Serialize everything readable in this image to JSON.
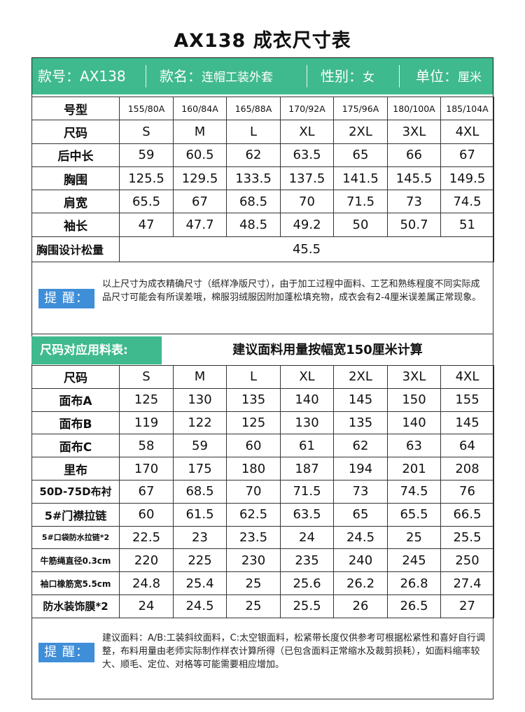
{
  "title": "AX138 成衣尺寸表",
  "banner": {
    "style_no_label": "款号：",
    "style_no": "AX138",
    "style_name_label": "款名：",
    "style_name": "连帽工装外套",
    "gender_label": "性别：",
    "gender": "女",
    "unit_label": "单位：",
    "unit": "厘米",
    "color": "#3fba8e"
  },
  "size_table": {
    "model_label": "号型",
    "models": [
      "155/80A",
      "160/84A",
      "165/88A",
      "170/92A",
      "175/96A",
      "180/100A",
      "185/104A"
    ],
    "size_label": "尺码",
    "sizes": [
      "S",
      "M",
      "L",
      "XL",
      "2XL",
      "3XL",
      "4XL"
    ],
    "rows": [
      {
        "label": "后中长",
        "values": [
          "59",
          "60.5",
          "62",
          "63.5",
          "65",
          "66",
          "67"
        ]
      },
      {
        "label": "胸围",
        "values": [
          "125.5",
          "129.5",
          "133.5",
          "137.5",
          "141.5",
          "145.5",
          "149.5"
        ]
      },
      {
        "label": "肩宽",
        "values": [
          "65.5",
          "67",
          "68.5",
          "70",
          "71.5",
          "73",
          "74.5"
        ]
      },
      {
        "label": "袖长",
        "values": [
          "47",
          "47.7",
          "48.5",
          "49.2",
          "50",
          "50.7",
          "51"
        ]
      }
    ],
    "ease_label": "胸围设计松量",
    "ease_value": "45.5"
  },
  "reminder1": {
    "badge": "提 醒：",
    "text": "以上尺寸为成衣精确尺寸（纸样净版尺寸），由于加工过程中面料、工艺和熟练程度不同实际成品尺寸可能会有所误差哦，棉服羽绒服因附加蓬松填充物，成衣会有2-4厘米误差属正常现象。",
    "color": "#3f8ed8"
  },
  "material_section": {
    "title": "尺码对应用料表:",
    "note": "建议面料用量按幅宽150厘米计算"
  },
  "material_table": {
    "size_label": "尺码",
    "sizes": [
      "S",
      "M",
      "L",
      "XL",
      "2XL",
      "3XL",
      "4XL"
    ],
    "rows": [
      {
        "label": "面布A",
        "values": [
          "125",
          "130",
          "135",
          "140",
          "145",
          "150",
          "155"
        ]
      },
      {
        "label": "面布B",
        "values": [
          "119",
          "122",
          "125",
          "130",
          "135",
          "140",
          "145"
        ]
      },
      {
        "label": "面布C",
        "values": [
          "58",
          "59",
          "60",
          "61",
          "62",
          "63",
          "64"
        ]
      },
      {
        "label": "里布",
        "values": [
          "170",
          "175",
          "180",
          "187",
          "194",
          "201",
          "208"
        ]
      },
      {
        "label": "50D-75D布衬",
        "values": [
          "67",
          "68.5",
          "70",
          "71.5",
          "73",
          "74.5",
          "76"
        ]
      },
      {
        "label": "5#门襟拉链",
        "values": [
          "60",
          "61.5",
          "62.5",
          "63.5",
          "65",
          "65.5",
          "66.5"
        ]
      },
      {
        "label": "5#口袋防水拉链*2",
        "values": [
          "22.5",
          "23",
          "23.5",
          "24",
          "24.5",
          "25",
          "25.5"
        ]
      },
      {
        "label": "牛筋绳直径0.3cm",
        "values": [
          "220",
          "225",
          "230",
          "235",
          "240",
          "245",
          "250"
        ]
      },
      {
        "label": "袖口橡筋宽5.5cm",
        "values": [
          "24.8",
          "25.4",
          "25",
          "25.6",
          "26.2",
          "26.8",
          "27.4"
        ]
      },
      {
        "label": "防水装饰膜*2",
        "values": [
          "24",
          "24.5",
          "25",
          "25.5",
          "26",
          "26.5",
          "27"
        ]
      }
    ]
  },
  "reminder2": {
    "badge": "提 醒：",
    "text": "建议面料：A/B:工装斜纹面料，C:太空银面料，松紧带长度仅供参考可根据松紧性和喜好自行调整，布料用量由老师实际制作样衣计算所得（已包含面料正常缩水及裁剪损耗），如面料缩率较大、顺毛、定位、对格等可能需要相应增加。"
  }
}
